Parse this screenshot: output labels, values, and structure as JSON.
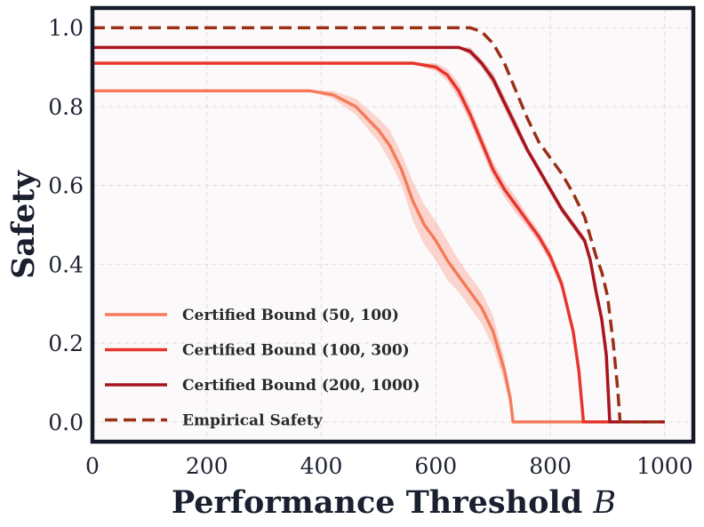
{
  "chart_data": {
    "type": "line",
    "title": "",
    "xlabel": "Performance Threshold",
    "xlabel_var": "B",
    "ylabel": "Safety",
    "xlim": [
      0,
      1050
    ],
    "ylim": [
      -0.05,
      1.05
    ],
    "xticks": [
      0,
      200,
      400,
      600,
      800,
      1000
    ],
    "xtick_labels": [
      "0",
      "200",
      "400",
      "600",
      "800",
      "1000"
    ],
    "yticks": [
      0.0,
      0.2,
      0.4,
      0.6,
      0.8,
      1.0
    ],
    "ytick_labels": [
      "0.0",
      "0.2",
      "0.4",
      "0.6",
      "0.8",
      "1.0"
    ],
    "grid": true,
    "legend_position": "lower-left",
    "series": [
      {
        "name": "Certified Bound (50, 100)",
        "color": "#f47c5c",
        "band_color": "#f9b8a8",
        "style": "solid",
        "x": [
          0,
          380,
          420,
          460,
          500,
          520,
          540,
          560,
          580,
          600,
          620,
          640,
          660,
          680,
          700,
          720,
          730,
          735,
          1000
        ],
        "y": [
          0.84,
          0.84,
          0.83,
          0.8,
          0.74,
          0.7,
          0.64,
          0.56,
          0.5,
          0.46,
          0.41,
          0.37,
          0.33,
          0.29,
          0.23,
          0.13,
          0.06,
          0.0,
          0.0
        ],
        "band": [
          0,
          0,
          0.01,
          0.02,
          0.03,
          0.04,
          0.04,
          0.05,
          0.05,
          0.05,
          0.05,
          0.04,
          0.04,
          0.04,
          0.04,
          0.03,
          0.02,
          0,
          0
        ]
      },
      {
        "name": "Certified Bound (100, 300)",
        "color": "#e8352c",
        "band_color": "#f5a6a0",
        "style": "solid",
        "x": [
          0,
          560,
          600,
          620,
          640,
          660,
          680,
          700,
          720,
          740,
          760,
          780,
          800,
          820,
          840,
          850,
          858,
          1000
        ],
        "y": [
          0.91,
          0.91,
          0.9,
          0.88,
          0.84,
          0.78,
          0.71,
          0.64,
          0.59,
          0.55,
          0.51,
          0.47,
          0.42,
          0.35,
          0.23,
          0.13,
          0.0,
          0.0
        ],
        "band": [
          0,
          0,
          0.01,
          0.015,
          0.02,
          0.02,
          0.02,
          0.02,
          0.02,
          0.02,
          0.015,
          0.015,
          0.015,
          0.015,
          0.01,
          0.01,
          0,
          0
        ]
      },
      {
        "name": "Certified Bound (200, 1000)",
        "color": "#a8141c",
        "band_color": "#d88890",
        "style": "solid",
        "x": [
          0,
          640,
          660,
          680,
          700,
          720,
          740,
          760,
          780,
          800,
          820,
          840,
          860,
          870,
          880,
          890,
          898,
          904,
          1000
        ],
        "y": [
          0.95,
          0.95,
          0.94,
          0.91,
          0.87,
          0.81,
          0.75,
          0.69,
          0.64,
          0.59,
          0.54,
          0.5,
          0.46,
          0.41,
          0.33,
          0.26,
          0.17,
          0.0,
          0.0
        ],
        "band": [
          0,
          0,
          0.01,
          0.01,
          0.015,
          0.015,
          0.015,
          0.01,
          0.01,
          0.01,
          0.01,
          0.01,
          0.01,
          0.01,
          0.01,
          0.01,
          0.005,
          0,
          0
        ]
      },
      {
        "name": "Empirical Safety",
        "color": "#993015",
        "style": "dashed",
        "x": [
          0,
          660,
          680,
          700,
          720,
          740,
          760,
          780,
          800,
          820,
          840,
          860,
          870,
          880,
          890,
          900,
          910,
          918,
          922,
          1000
        ],
        "y": [
          1.0,
          1.0,
          0.99,
          0.96,
          0.91,
          0.84,
          0.77,
          0.71,
          0.67,
          0.63,
          0.58,
          0.52,
          0.47,
          0.42,
          0.38,
          0.32,
          0.2,
          0.08,
          0.0,
          0.0
        ]
      }
    ]
  }
}
